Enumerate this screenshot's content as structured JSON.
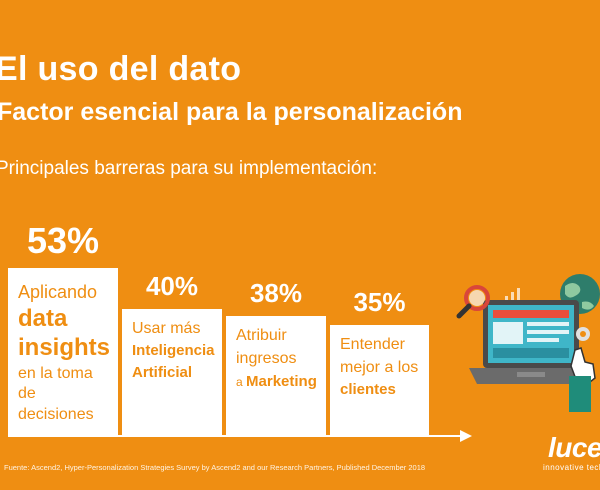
{
  "header": {
    "title": "El uso del dato",
    "subtitle": "Factor esencial para la personalización",
    "section": "Principales barreras para su implementación:"
  },
  "chart_data": {
    "type": "bar",
    "title": "",
    "xlabel": "",
    "ylabel": "",
    "ylim": [
      0,
      53
    ],
    "categories": [
      "Aplicando data insights en la toma de decisiones",
      "Usar más Inteligencia Artificial",
      "Atribuir ingresos a Marketing",
      "Entender mejor a los clientes"
    ],
    "values": [
      53,
      40,
      38,
      35
    ],
    "value_labels": [
      "53%",
      "40%",
      "38%",
      "35%"
    ],
    "bar_labels": [
      [
        {
          "t": "Aplicando",
          "b": false,
          "s": 18
        },
        {
          "t": "data",
          "b": true,
          "s": 24
        },
        {
          "t": "insights",
          "b": true,
          "s": 24
        },
        {
          "t": "en la toma",
          "b": false,
          "s": 16
        },
        {
          "t": "de",
          "b": false,
          "s": 16
        },
        {
          "t": "decisiones",
          "b": false,
          "s": 16
        }
      ],
      [
        {
          "t": "Usar más",
          "b": false,
          "s": 16
        },
        {
          "t": "Inteligencia",
          "b": true,
          "s": 15
        },
        {
          "t": "Artificial",
          "b": true,
          "s": 15
        }
      ],
      [
        {
          "t": "Atribuir",
          "b": false,
          "s": 16
        },
        {
          "t": "ingresos",
          "b": false,
          "s": 16
        },
        {
          "t": "a Marketing",
          "b": false,
          "s": 16,
          "boldPart": "Marketing"
        }
      ],
      [
        {
          "t": "Entender",
          "b": false,
          "s": 16
        },
        {
          "t": "mejor a los",
          "b": false,
          "s": 16
        },
        {
          "t": "clientes",
          "b": true,
          "s": 15
        }
      ]
    ]
  },
  "footer": {
    "source": "Fuente: Ascend2, Hyper-Personalization Strategies Survey by Ascend2 and our Research Partners, Published  December 2018",
    "logo": "luce",
    "tagline": "innovative techno"
  },
  "colors": {
    "background": "#ef8e12",
    "card": "#ffffff",
    "accent_text": "#ef8e12"
  },
  "icons": [
    "magnifier-icon",
    "laptop-icon",
    "globe-icon",
    "gear-icon",
    "cursor-hand-icon",
    "chart-icon"
  ]
}
